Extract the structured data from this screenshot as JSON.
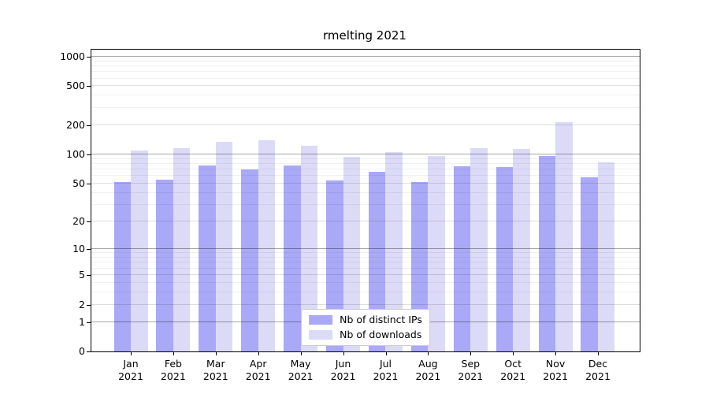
{
  "chart_data": {
    "type": "bar",
    "title": "rmelting 2021",
    "y_scale": "log10(1+x)",
    "ylim": [
      0,
      1178
    ],
    "grid": "on",
    "legend_position": "bottom-center",
    "x_categories": [
      {
        "month": "Jan",
        "year": "2021"
      },
      {
        "month": "Feb",
        "year": "2021"
      },
      {
        "month": "Mar",
        "year": "2021"
      },
      {
        "month": "Apr",
        "year": "2021"
      },
      {
        "month": "May",
        "year": "2021"
      },
      {
        "month": "Jun",
        "year": "2021"
      },
      {
        "month": "Jul",
        "year": "2021"
      },
      {
        "month": "Aug",
        "year": "2021"
      },
      {
        "month": "Sep",
        "year": "2021"
      },
      {
        "month": "Oct",
        "year": "2021"
      },
      {
        "month": "Nov",
        "year": "2021"
      },
      {
        "month": "Dec",
        "year": "2021"
      }
    ],
    "series": [
      {
        "name": "Nb of distinct IPs",
        "color": "#a9a9f7",
        "values": [
          52,
          55,
          77,
          70,
          77,
          54,
          66,
          52,
          76,
          75,
          97,
          58
        ]
      },
      {
        "name": "Nb of downloads",
        "color": "#dbdbf8",
        "values": [
          110,
          116,
          135,
          140,
          122,
          94,
          105,
          97,
          116,
          115,
          215,
          83
        ]
      }
    ],
    "y_ticks": [
      "1000",
      "500",
      "200",
      "100",
      "50",
      "20",
      "10",
      "5",
      "2",
      "1",
      "0"
    ],
    "gridlines": {
      "decade": {
        "values": [
          1,
          10,
          100,
          1000
        ],
        "color": "rgba(0,0,0,0.35)"
      },
      "mid": {
        "values": [
          2,
          5,
          20,
          50,
          200,
          500
        ],
        "color": "rgba(0,0,0,0.13)"
      },
      "minor": {
        "values": [
          3,
          4,
          6,
          7,
          8,
          9,
          30,
          40,
          60,
          70,
          80,
          90,
          300,
          400,
          600,
          700,
          800,
          900
        ],
        "color": "rgba(0,0,0,0.06)"
      }
    },
    "axis_color": "#000000"
  }
}
